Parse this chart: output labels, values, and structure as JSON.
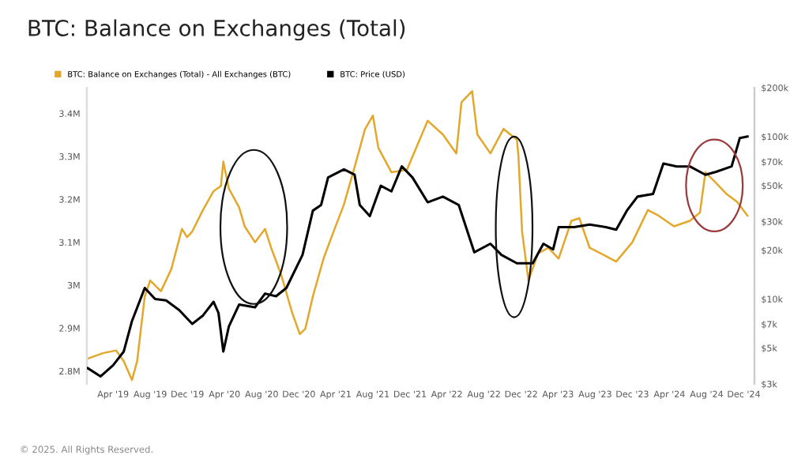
{
  "chart_data": {
    "type": "line",
    "title": "BTC: Balance on Exchanges (Total)",
    "annotations": [
      "© 2025. All Rights Reserved."
    ],
    "legend": "top left",
    "xlim": [
      "2019-01-05",
      "2025-01-05"
    ],
    "xticks": [
      {
        "value": "2019-04-01",
        "label": "Apr '19"
      },
      {
        "value": "2019-08-01",
        "label": "Aug '19"
      },
      {
        "value": "2019-12-01",
        "label": "Dec '19"
      },
      {
        "value": "2020-04-01",
        "label": "Apr '20"
      },
      {
        "value": "2020-08-01",
        "label": "Aug '20"
      },
      {
        "value": "2020-12-01",
        "label": "Dec '20"
      },
      {
        "value": "2021-04-01",
        "label": "Apr '21"
      },
      {
        "value": "2021-08-01",
        "label": "Aug '21"
      },
      {
        "value": "2021-12-01",
        "label": "Dec '21"
      },
      {
        "value": "2022-04-01",
        "label": "Apr '22"
      },
      {
        "value": "2022-08-01",
        "label": "Aug '22"
      },
      {
        "value": "2022-12-01",
        "label": "Dec '22"
      },
      {
        "value": "2023-04-01",
        "label": "Apr '23"
      },
      {
        "value": "2023-08-01",
        "label": "Aug '23"
      },
      {
        "value": "2023-12-01",
        "label": "Dec '23"
      },
      {
        "value": "2024-04-01",
        "label": "Apr '24"
      },
      {
        "value": "2024-08-01",
        "label": "Aug '24"
      },
      {
        "value": "2024-12-01",
        "label": "Dec '24"
      }
    ],
    "ylim": [
      2.77,
      3.46
    ],
    "yticks": [
      {
        "value": 2.8,
        "label": "2.8M"
      },
      {
        "value": 2.9,
        "label": "2.9M"
      },
      {
        "value": 3.0,
        "label": "3M"
      },
      {
        "value": 3.1,
        "label": "3.1M"
      },
      {
        "value": 3.2,
        "label": "3.2M"
      },
      {
        "value": 3.3,
        "label": "3.3M"
      },
      {
        "value": 3.4,
        "label": "3.4M"
      }
    ],
    "log": "y2",
    "y2lim": [
      3000,
      200000
    ],
    "y2ticks": [
      {
        "value": 3000,
        "label": "$3k"
      },
      {
        "value": 5000,
        "label": "$5k"
      },
      {
        "value": 7000,
        "label": "$7k"
      },
      {
        "value": 10000,
        "label": "$10k"
      },
      {
        "value": 20000,
        "label": "$20k"
      },
      {
        "value": 30000,
        "label": "$30k"
      },
      {
        "value": 50000,
        "label": "$50k"
      },
      {
        "value": 70000,
        "label": "$70k"
      },
      {
        "value": 100000,
        "label": "$100k"
      },
      {
        "value": 200000,
        "label": "$200k"
      }
    ],
    "series": [
      {
        "name": "BTC: Balance on Exchanges (Total) - All Exchanges (BTC)",
        "color": "#e3a82b",
        "x": [
          "2019-01-08",
          "2019-02-28",
          "2019-04-11",
          "2019-05-06",
          "2019-06-02",
          "2019-06-19",
          "2019-07-14",
          "2019-08-01",
          "2019-09-05",
          "2019-10-09",
          "2019-11-13",
          "2019-11-30",
          "2019-12-17",
          "2020-01-21",
          "2020-02-25",
          "2020-03-20",
          "2020-03-28",
          "2020-04-15",
          "2020-05-19",
          "2020-06-06",
          "2020-07-10",
          "2020-08-12",
          "2020-09-01",
          "2020-10-04",
          "2020-11-09",
          "2020-12-04",
          "2020-12-22",
          "2021-01-16",
          "2021-02-20",
          "2021-03-25",
          "2021-04-28",
          "2021-06-02",
          "2021-07-06",
          "2021-08-01",
          "2021-08-19",
          "2021-10-01",
          "2021-11-21",
          "2022-01-28",
          "2022-03-19",
          "2022-05-02",
          "2022-05-19",
          "2022-06-23",
          "2022-07-10",
          "2022-08-22",
          "2022-10-04",
          "2022-11-17",
          "2022-11-22",
          "2022-12-04",
          "2022-12-25",
          "2023-01-25",
          "2023-02-28",
          "2023-04-03",
          "2023-05-15",
          "2023-06-10",
          "2023-07-14",
          "2023-09-05",
          "2023-10-09",
          "2023-12-01",
          "2024-01-21",
          "2024-02-25",
          "2024-04-16",
          "2024-06-07",
          "2024-07-10",
          "2024-07-28",
          "2024-09-01",
          "2024-10-06",
          "2024-11-09",
          "2024-12-13"
        ],
        "values": [
          2.829,
          2.842,
          2.848,
          2.823,
          2.779,
          2.823,
          2.974,
          3.011,
          2.986,
          3.037,
          3.131,
          3.112,
          3.125,
          3.175,
          3.219,
          3.231,
          3.288,
          3.225,
          3.181,
          3.137,
          3.1,
          3.131,
          3.087,
          3.024,
          2.936,
          2.886,
          2.898,
          2.974,
          3.062,
          3.125,
          3.188,
          3.275,
          3.363,
          3.395,
          3.32,
          3.263,
          3.269,
          3.383,
          3.351,
          3.307,
          3.426,
          3.452,
          3.351,
          3.307,
          3.364,
          3.339,
          3.301,
          3.125,
          3.011,
          3.074,
          3.087,
          3.062,
          3.15,
          3.156,
          3.087,
          3.068,
          3.055,
          3.1,
          3.175,
          3.162,
          3.137,
          3.15,
          3.169,
          3.263,
          3.238,
          3.212,
          3.194,
          3.162
        ]
      },
      {
        "name": "BTC: Price (USD)",
        "color": "#000000",
        "axis": "y2",
        "x": [
          "2019-01-08",
          "2019-02-19",
          "2019-04-01",
          "2019-05-06",
          "2019-06-02",
          "2019-07-14",
          "2019-08-17",
          "2019-09-22",
          "2019-11-04",
          "2019-12-17",
          "2020-01-21",
          "2020-02-25",
          "2020-03-12",
          "2020-03-28",
          "2020-04-15",
          "2020-05-19",
          "2020-07-10",
          "2020-08-12",
          "2020-09-17",
          "2020-10-21",
          "2020-12-13",
          "2021-01-16",
          "2021-02-12",
          "2021-03-07",
          "2021-04-28",
          "2021-06-02",
          "2021-06-19",
          "2021-07-22",
          "2021-08-27",
          "2021-10-01",
          "2021-11-04",
          "2021-12-09",
          "2022-01-28",
          "2022-03-19",
          "2022-05-10",
          "2022-06-30",
          "2022-08-22",
          "2022-09-27",
          "2022-11-17",
          "2023-01-08",
          "2023-02-12",
          "2023-03-16",
          "2023-04-03",
          "2023-05-24",
          "2023-07-14",
          "2023-09-05",
          "2023-10-09",
          "2023-11-13",
          "2023-12-18",
          "2024-02-07",
          "2024-03-12",
          "2024-04-25",
          "2024-06-07",
          "2024-07-28",
          "2024-09-01",
          "2024-10-22",
          "2024-11-18",
          "2024-12-13"
        ],
        "values": [
          3750,
          3340,
          3910,
          4750,
          7310,
          11700,
          10000,
          9800,
          8550,
          7030,
          7910,
          9610,
          8220,
          4750,
          6760,
          9250,
          8890,
          10800,
          10400,
          11700,
          18700,
          35000,
          37900,
          56000,
          62900,
          58200,
          37900,
          32400,
          49800,
          46000,
          65500,
          56000,
          39400,
          42700,
          37900,
          19400,
          21900,
          18700,
          16600,
          16600,
          21900,
          20200,
          27700,
          27700,
          28700,
          27700,
          26700,
          35000,
          42700,
          44300,
          68200,
          65500,
          65500,
          58200,
          60700,
          65500,
          98000,
          100000
        ]
      }
    ]
  }
}
